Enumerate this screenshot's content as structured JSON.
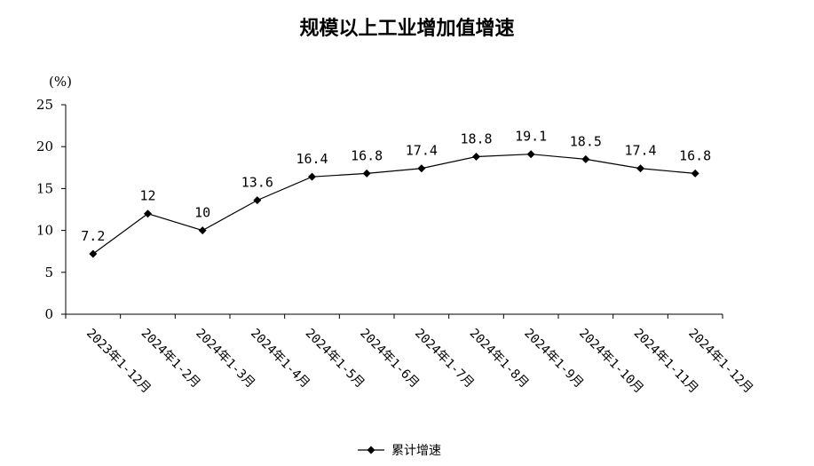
{
  "chart_data": {
    "type": "line",
    "title": "规模以上工业增加值增速",
    "ylabel": "(%)",
    "xlabel": "",
    "ylim": [
      0,
      25
    ],
    "yticks": [
      0,
      5,
      10,
      15,
      20,
      25
    ],
    "grid": false,
    "legend_position": "bottom",
    "categories": [
      "2023年1-12月",
      "2024年1-2月",
      "2024年1-3月",
      "2024年1-4月",
      "2024年1-5月",
      "2024年1-6月",
      "2024年1-7月",
      "2024年1-8月",
      "2024年1-9月",
      "2024年1-10月",
      "2024年1-11月",
      "2024年1-12月"
    ],
    "series": [
      {
        "name": "累计增速",
        "values": [
          7.2,
          12,
          10,
          13.6,
          16.4,
          16.8,
          17.4,
          18.8,
          19.1,
          18.5,
          17.4,
          16.8
        ],
        "labels": [
          "7.2",
          "12",
          "10",
          "13.6",
          "16.4",
          "16.8",
          "17.4",
          "18.8",
          "19.1",
          "18.5",
          "17.4",
          "16.8"
        ],
        "color": "#000000"
      }
    ]
  }
}
